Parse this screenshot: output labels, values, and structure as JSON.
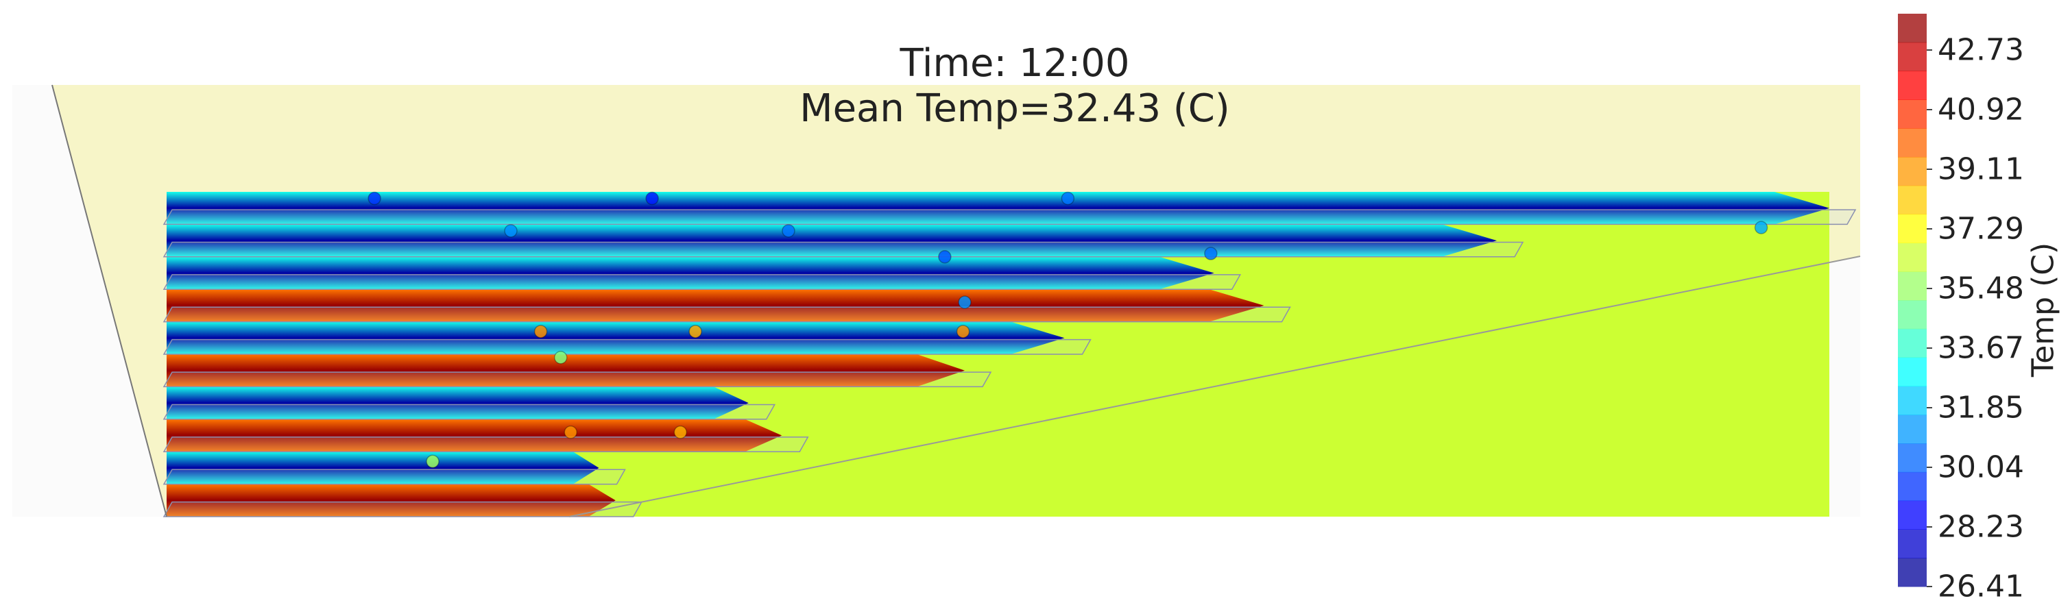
{
  "chart_data": {
    "type": "heatmap",
    "title_lines": [
      "Time: 12:00",
      "Mean Temp=32.43 (C)"
    ],
    "colorbar": {
      "label": "Temp (C)",
      "ticks": [
        "26.41",
        "28.23",
        "30.04",
        "31.85",
        "33.67",
        "35.48",
        "37.29",
        "39.11",
        "40.92",
        "42.73"
      ],
      "min": 26.41,
      "max": 43.6,
      "colormap": "jet"
    },
    "ambient_temperature": 36.3,
    "panels": [
      {
        "row": 1,
        "length": 1.0,
        "temps": [
          33.2,
          27.0,
          33.2
        ]
      },
      {
        "row": 2,
        "length": 0.8,
        "temps": [
          33.2,
          27.0,
          33.2
        ]
      },
      {
        "row": 3,
        "length": 0.63,
        "temps": [
          33.2,
          27.0,
          33.2
        ]
      },
      {
        "row": 4,
        "length": 0.66,
        "temps": [
          39.5,
          43.2,
          39.5
        ]
      },
      {
        "row": 5,
        "length": 0.54,
        "temps": [
          33.2,
          27.0,
          33.2
        ]
      },
      {
        "row": 6,
        "length": 0.48,
        "temps": [
          39.5,
          43.2,
          39.5
        ]
      },
      {
        "row": 7,
        "length": 0.35,
        "temps": [
          33.2,
          27.0,
          33.2
        ]
      },
      {
        "row": 8,
        "length": 0.37,
        "temps": [
          39.5,
          43.2,
          39.5
        ]
      },
      {
        "row": 9,
        "length": 0.26,
        "temps": [
          33.2,
          27.0,
          33.2
        ]
      },
      {
        "row": 10,
        "length": 0.27,
        "temps": [
          39.5,
          43.2,
          39.5
        ]
      }
    ],
    "sensors": [
      {
        "x": 0.125,
        "y": 0.02,
        "temp": 29.5
      },
      {
        "x": 0.292,
        "y": 0.02,
        "temp": 29.0
      },
      {
        "x": 0.542,
        "y": 0.02,
        "temp": 30.5
      },
      {
        "x": 0.207,
        "y": 0.12,
        "temp": 31.0
      },
      {
        "x": 0.374,
        "y": 0.12,
        "temp": 30.5
      },
      {
        "x": 0.959,
        "y": 0.11,
        "temp": 31.5
      },
      {
        "x": 0.468,
        "y": 0.2,
        "temp": 30.0
      },
      {
        "x": 0.628,
        "y": 0.19,
        "temp": 30.5
      },
      {
        "x": 0.48,
        "y": 0.34,
        "temp": 31.0
      },
      {
        "x": 0.225,
        "y": 0.43,
        "temp": 39.0
      },
      {
        "x": 0.318,
        "y": 0.43,
        "temp": 38.5
      },
      {
        "x": 0.479,
        "y": 0.43,
        "temp": 39.0
      },
      {
        "x": 0.237,
        "y": 0.51,
        "temp": 35.0
      },
      {
        "x": 0.243,
        "y": 0.74,
        "temp": 39.0
      },
      {
        "x": 0.309,
        "y": 0.74,
        "temp": 38.5
      },
      {
        "x": 0.16,
        "y": 0.83,
        "temp": 35.5
      }
    ]
  }
}
